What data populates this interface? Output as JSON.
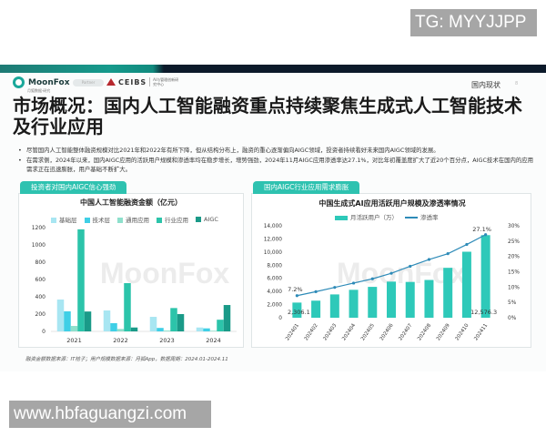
{
  "watermarks": {
    "top": "TG: MYYJJPP",
    "bottom": "www.hbfaguangzi.com"
  },
  "header": {
    "logo": "MoonFox",
    "logo_sub": "月狐数据·研究",
    "pill": "Partner",
    "partner": "CEIBS",
    "partner_sub": "AI与管理创新研究中心",
    "section": "国内现状",
    "page": "8"
  },
  "title": "市场概况：国内人工智能融资重点持续聚焦生成式人工智能技术及行业应用",
  "bullets": [
    "尽管国内人工智能整体融资规模对比2021年和2022年有所下降，但从结构分布上，融资的重心逐渐偏向AIGC领域，投资者持续看好未来国内AIGC领域的发展。",
    "在需求侧，2024年以来，国内AIGC应用的活跃用户规模和渗透率均在稳步增长，增势强劲，2024年11月AIGC应用渗透率达27.1%，对比年初覆盖度扩大了近20个百分点，AIGC技术在国内的应用需求正在迅速膨胀，用户基础不断扩大。"
  ],
  "panels": {
    "left": {
      "tag": "投资者对国内AIGC信心强劲"
    },
    "right": {
      "tag": "国内AIGC行业应用需求膨胀"
    }
  },
  "watermark_text": "MoonFox",
  "source": "融资金额数据来源：IT桔子；用户规模数据来源：月狐App，数据周期：2024.01-2024.11",
  "colors": {
    "accent": "#2ec2b0",
    "series": [
      "#a8e6f2",
      "#3fcfe6",
      "#8ee0cc",
      "#2cc4aa",
      "#1a9a88"
    ],
    "bar_right": "#2ec9b9",
    "line": "#2e8bb8",
    "topband_dark": "#0c1a2a"
  },
  "chart_data": [
    {
      "type": "bar",
      "title": "中国人工智能融资金额（亿元）",
      "categories": [
        "2021",
        "2022",
        "2023",
        "2024"
      ],
      "series": [
        {
          "name": "基础层",
          "values": [
            368,
            242,
            168,
            45
          ]
        },
        {
          "name": "技术层",
          "values": [
            232,
            95,
            40,
            35
          ]
        },
        {
          "name": "通用应用",
          "values": [
            63,
            28,
            10,
            8
          ]
        },
        {
          "name": "行业应用",
          "values": [
            1180,
            558,
            270,
            135
          ]
        },
        {
          "name": "AIGC",
          "values": [
            230,
            45,
            200,
            305
          ]
        }
      ],
      "yticks": [
        "0",
        "200",
        "400",
        "600",
        "800",
        "1000",
        "1200"
      ],
      "ylim": [
        0,
        1200
      ],
      "legend_position": "top",
      "grid": false,
      "xlabel": "",
      "ylabel": ""
    },
    {
      "type": "bar+line",
      "title": "中国生成式AI应用活跃用户规模及渗透率情况",
      "categories": [
        "202401",
        "202402",
        "202403",
        "202404",
        "202405",
        "202406",
        "202407",
        "202408",
        "202409",
        "202410",
        "202411"
      ],
      "series": [
        {
          "name": "月活跃用户（万）",
          "type": "bar",
          "axis": "left",
          "values": [
            2306.1,
            2600,
            3550,
            4250,
            4700,
            5500,
            5450,
            5750,
            7600,
            10050,
            12576.3
          ]
        },
        {
          "name": "渗透率",
          "type": "line",
          "axis": "right",
          "values": [
            7.2,
            8.5,
            9.9,
            11.3,
            12.7,
            14.5,
            16.8,
            19.0,
            20.9,
            23.9,
            27.1
          ]
        }
      ],
      "annotations": [
        "7.2%",
        "27.1%",
        "2,306.1",
        "12,576.3"
      ],
      "yticks_left": [
        "0",
        "2,000",
        "4,000",
        "6,000",
        "8,000",
        "10,000",
        "12,000",
        "14,000"
      ],
      "yticks_right": [
        "0%",
        "5%",
        "10%",
        "15%",
        "20%",
        "25%",
        "30%"
      ],
      "ylim_left": [
        0,
        14000
      ],
      "ylim_right": [
        0,
        30
      ],
      "legend_position": "top",
      "grid": false
    }
  ]
}
